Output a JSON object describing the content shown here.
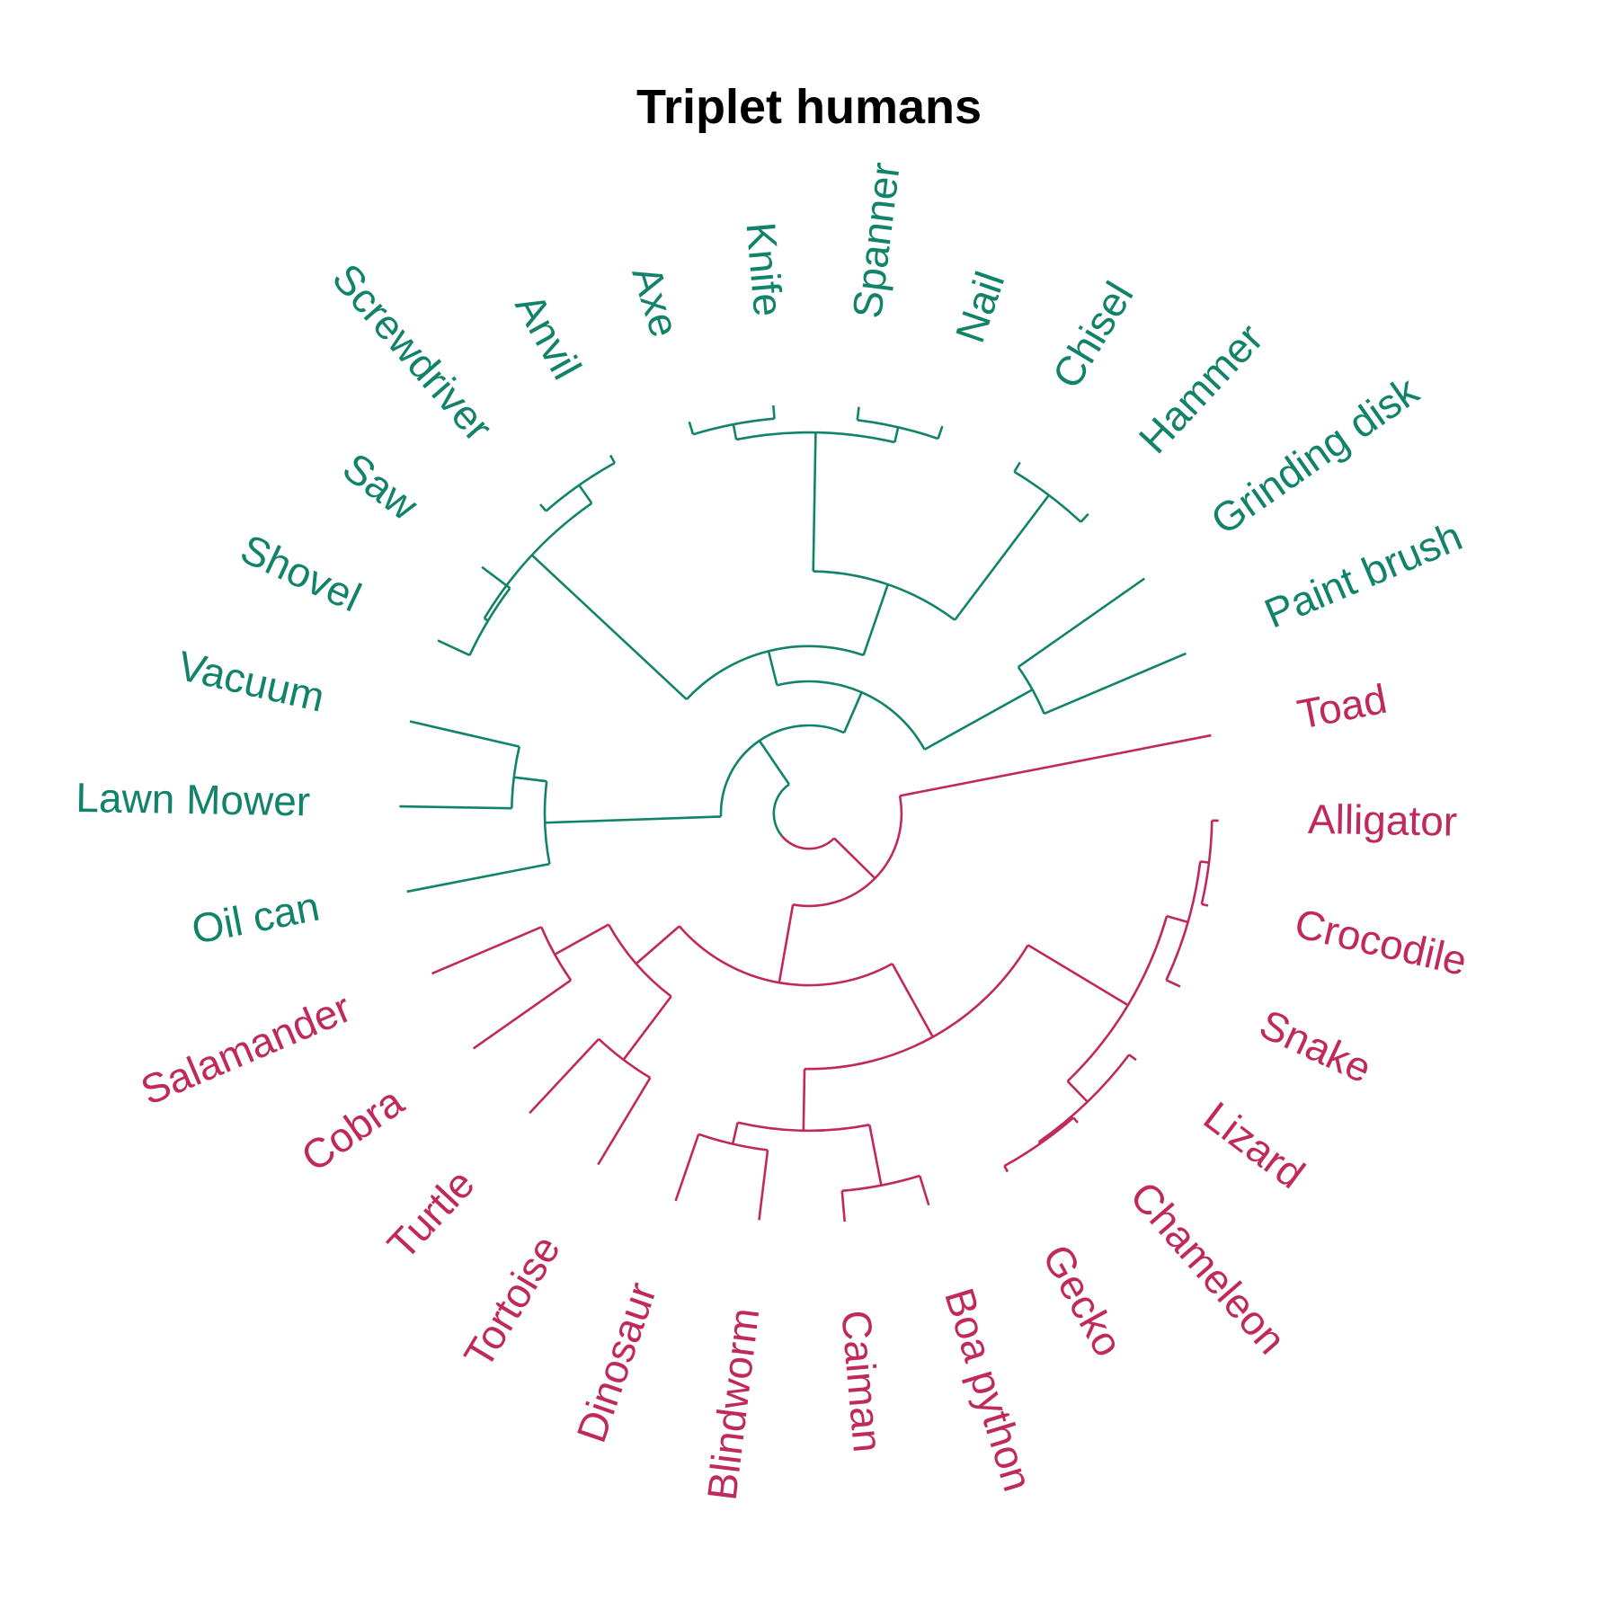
{
  "title": "Triplet humans",
  "colors": {
    "tools": "#12836b",
    "animals": "#c0295a"
  },
  "leaves": [
    {
      "label": "Paint brush",
      "group": "tools"
    },
    {
      "label": "Grinding disk",
      "group": "tools"
    },
    {
      "label": "Hammer",
      "group": "tools"
    },
    {
      "label": "Chisel",
      "group": "tools"
    },
    {
      "label": "Nail",
      "group": "tools"
    },
    {
      "label": "Spanner",
      "group": "tools"
    },
    {
      "label": "Knife",
      "group": "tools"
    },
    {
      "label": "Axe",
      "group": "tools"
    },
    {
      "label": "Anvil",
      "group": "tools"
    },
    {
      "label": "Screwdriver",
      "group": "tools"
    },
    {
      "label": "Saw",
      "group": "tools"
    },
    {
      "label": "Shovel",
      "group": "tools"
    },
    {
      "label": "Vacuum",
      "group": "tools"
    },
    {
      "label": "Lawn Mower",
      "group": "tools"
    },
    {
      "label": "Oil can",
      "group": "tools"
    },
    {
      "label": "Salamander",
      "group": "animals"
    },
    {
      "label": "Cobra",
      "group": "animals"
    },
    {
      "label": "Turtle",
      "group": "animals"
    },
    {
      "label": "Tortoise",
      "group": "animals"
    },
    {
      "label": "Dinosaur",
      "group": "animals"
    },
    {
      "label": "Blindworm",
      "group": "animals"
    },
    {
      "label": "Caiman",
      "group": "animals"
    },
    {
      "label": "Boa python",
      "group": "animals"
    },
    {
      "label": "Gecko",
      "group": "animals"
    },
    {
      "label": "Chameleon",
      "group": "animals"
    },
    {
      "label": "Lizard",
      "group": "animals"
    },
    {
      "label": "Snake",
      "group": "animals"
    },
    {
      "label": "Crocodile",
      "group": "animals"
    },
    {
      "label": "Alligator",
      "group": "animals"
    },
    {
      "label": "Toad",
      "group": "animals"
    }
  ],
  "tree": {
    "h": 0.08,
    "children": [
      {
        "h": 0.2,
        "group": "tools",
        "children": [
          {
            "h": 0.3,
            "children": [
              {
                "h": 0.58,
                "children": [
                  {
                    "leaf": 0,
                    "h": 0.93
                  },
                  {
                    "leaf": 1,
                    "h": 0.93
                  }
                ]
              },
              {
                "h": 0.38,
                "children": [
                  {
                    "h": 0.55,
                    "children": [
                      {
                        "h": 0.905,
                        "children": [
                          {
                            "leaf": 2,
                            "h": 0.93
                          },
                          {
                            "leaf": 3,
                            "h": 0.93
                          }
                        ]
                      },
                      {
                        "h": 0.865,
                        "children": [
                          {
                            "h": 0.9,
                            "children": [
                              {
                                "leaf": 4,
                                "h": 0.93
                              },
                              {
                                "leaf": 5,
                                "h": 0.93
                              }
                            ]
                          },
                          {
                            "h": 0.9,
                            "children": [
                              {
                                "leaf": 6,
                                "h": 0.93
                              },
                              {
                                "leaf": 7,
                                "h": 0.93
                              }
                            ]
                          }
                        ]
                      }
                    ]
                  },
                  {
                    "h": 0.86,
                    "children": [
                      {
                        "h": 0.91,
                        "children": [
                          {
                            "leaf": 8,
                            "h": 0.93
                          },
                          {
                            "leaf": 9,
                            "h": 0.93
                          }
                        ]
                      },
                      {
                        "h": 0.85,
                        "children": [
                          {
                            "leaf": 10,
                            "h": 0.93
                          },
                          {
                            "leaf": 11,
                            "h": 0.93
                          }
                        ]
                      }
                    ]
                  }
                ]
              }
            ]
          },
          {
            "h": 0.6,
            "children": [
              {
                "h": 0.675,
                "children": [
                  {
                    "leaf": 12,
                    "h": 0.93
                  },
                  {
                    "leaf": 13,
                    "h": 0.93
                  }
                ]
              },
              {
                "leaf": 14,
                "h": 0.93
              }
            ]
          }
        ]
      },
      {
        "h": 0.21,
        "group": "animals",
        "children": [
          {
            "h": 0.39,
            "children": [
              {
                "h": 0.52,
                "children": [
                  {
                    "h": 0.66,
                    "children": [
                      {
                        "leaf": 15,
                        "h": 0.93
                      },
                      {
                        "leaf": 16,
                        "h": 0.93
                      }
                    ]
                  },
                  {
                    "h": 0.7,
                    "children": [
                      {
                        "leaf": 17,
                        "h": 0.93
                      },
                      {
                        "leaf": 18,
                        "h": 0.93
                      }
                    ]
                  }
                ]
              },
              {
                "h": 0.58,
                "children": [
                  {
                    "h": 0.72,
                    "children": [
                      {
                        "h": 0.77,
                        "children": [
                          {
                            "leaf": 19,
                            "h": 0.93
                          },
                          {
                            "leaf": 20,
                            "h": 0.93
                          }
                        ]
                      },
                      {
                        "h": 0.86,
                        "children": [
                          {
                            "leaf": 21,
                            "h": 0.93
                          },
                          {
                            "leaf": 22,
                            "h": 0.93
                          }
                        ]
                      }
                    ]
                  },
                  {
                    "h": 0.845,
                    "children": [
                      {
                        "h": 0.91,
                        "children": [
                          {
                            "h": 0.915,
                            "children": [
                              {
                                "leaf": 23,
                                "h": 0.93
                              },
                              {
                                "leaf": 24,
                                "h": 0.93
                              }
                            ]
                          },
                          {
                            "leaf": 25,
                            "h": 0.93
                          }
                        ]
                      },
                      {
                        "h": 0.895,
                        "children": [
                          {
                            "leaf": 26,
                            "h": 0.93
                          },
                          {
                            "h": 0.915,
                            "children": [
                              {
                                "leaf": 27,
                                "h": 0.93
                              },
                              {
                                "leaf": 28,
                                "h": 0.93
                              }
                            ]
                          }
                        ]
                      }
                    ]
                  }
                ]
              }
            ]
          },
          {
            "leaf": 29,
            "h": 0.93
          }
        ]
      }
    ]
  }
}
